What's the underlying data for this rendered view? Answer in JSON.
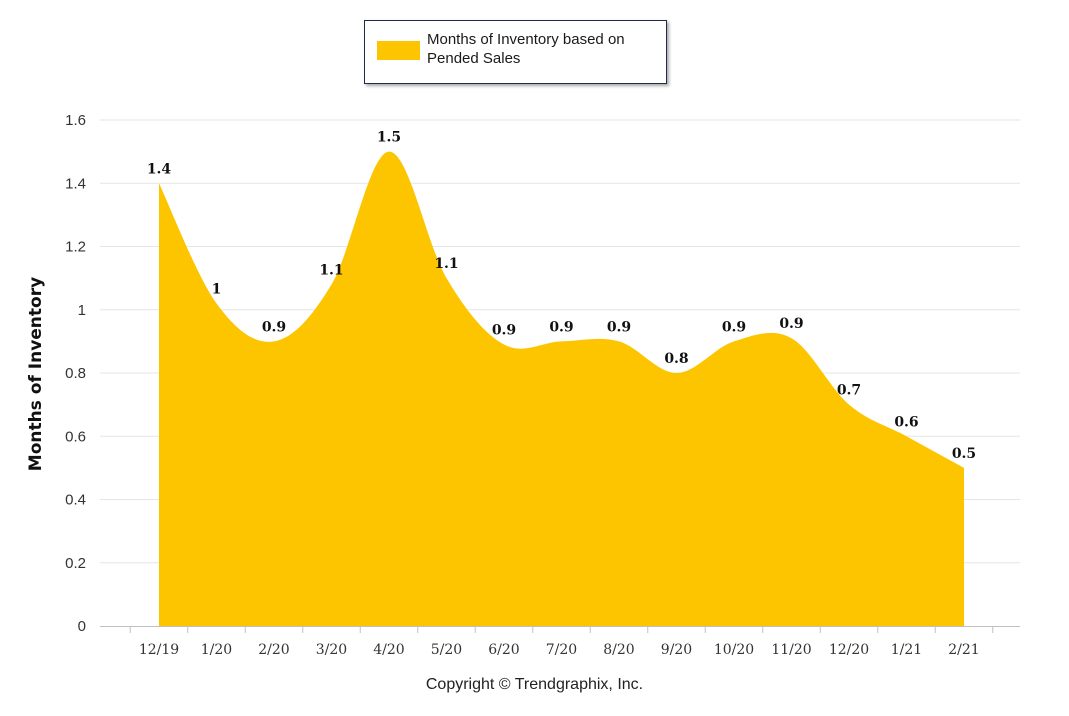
{
  "colors": {
    "area": "#fcc500",
    "grid": "#e6e6e6",
    "axis": "#c0c0c0",
    "text": "#333333"
  },
  "legend": {
    "label": "Months of Inventory based on Pended Sales"
  },
  "copyright": "Copyright © Trendgraphix, Inc.",
  "chart_data": {
    "type": "area",
    "title": "",
    "xlabel": "",
    "ylabel": "Months of Inventory",
    "ylim": [
      0,
      1.6
    ],
    "yticks": [
      "0",
      "0.2",
      "0.4",
      "0.6",
      "0.8",
      "1",
      "1.2",
      "1.4",
      "1.6"
    ],
    "grid": true,
    "legend_position": "top-center",
    "categories": [
      "12/19",
      "1/20",
      "2/20",
      "3/20",
      "4/20",
      "5/20",
      "6/20",
      "7/20",
      "8/20",
      "9/20",
      "10/20",
      "11/20",
      "12/20",
      "1/21",
      "2/21"
    ],
    "series": [
      {
        "name": "Months of Inventory based on Pended Sales",
        "values": [
          1.4,
          1.02,
          0.9,
          1.08,
          1.5,
          1.1,
          0.89,
          0.9,
          0.9,
          0.8,
          0.9,
          0.91,
          0.7,
          0.6,
          0.5
        ],
        "labels": [
          "1.4",
          "1",
          "0.9",
          "1.1",
          "1.5",
          "1.1",
          "0.9",
          "0.9",
          "0.9",
          "0.8",
          "0.9",
          "0.9",
          "0.7",
          "0.6",
          "0.5"
        ]
      }
    ]
  }
}
